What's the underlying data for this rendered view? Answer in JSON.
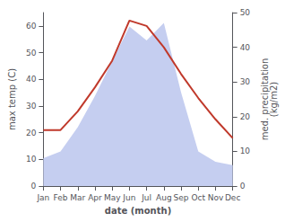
{
  "chart_data": {
    "type": "line",
    "xlabel": "date (month)",
    "ylabel": "max temp (C)",
    "y2label": "med. precipitation\n(kg/m2)",
    "categories": [
      "Jan",
      "Feb",
      "Mar",
      "Apr",
      "May",
      "Jun",
      "Jul",
      "Aug",
      "Sep",
      "Oct",
      "Nov",
      "Dec"
    ],
    "series": [
      {
        "type": "area",
        "axis": "y2",
        "color": "#c5cef0",
        "values": [
          8,
          10,
          17,
          26,
          36,
          46,
          42,
          47,
          27,
          10,
          7,
          6
        ]
      },
      {
        "type": "line",
        "color": "#c0392b",
        "values": [
          21,
          21,
          28,
          37,
          47,
          62,
          60,
          52,
          42,
          33,
          25,
          18
        ]
      }
    ],
    "ylim": [
      0,
      65
    ],
    "yticks": [
      0,
      10,
      20,
      30,
      40,
      50,
      60
    ],
    "y2lim": [
      0,
      50
    ],
    "y2ticks": [
      0,
      10,
      20,
      30,
      40,
      50
    ],
    "grid": false
  }
}
